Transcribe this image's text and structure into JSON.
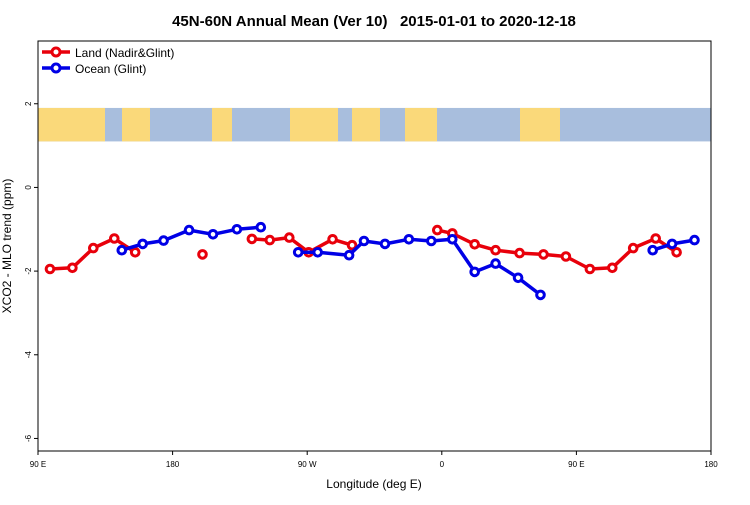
{
  "chart_data": {
    "type": "line",
    "title": "45N-60N Annual Mean (Ver 10)   2015-01-01 to 2020-12-18",
    "xlabel": "Longitude (deg E)",
    "ylabel": "XCO2 - MLO trend (ppm)",
    "xlim": [
      90,
      540
    ],
    "ylim": [
      -6.3,
      3.5
    ],
    "x_ticks": [
      {
        "value": 90,
        "label": "90 E"
      },
      {
        "value": 180,
        "label": "180"
      },
      {
        "value": 270,
        "label": "90 W"
      },
      {
        "value": 360,
        "label": "0"
      },
      {
        "value": 450,
        "label": "90 E"
      },
      {
        "value": 540,
        "label": "180"
      }
    ],
    "y_ticks": [
      {
        "value": 2,
        "label": "2"
      },
      {
        "value": 0,
        "label": "0"
      },
      {
        "value": -2,
        "label": "-2"
      },
      {
        "value": -4,
        "label": "-4"
      },
      {
        "value": -6,
        "label": "-6"
      }
    ],
    "map_band": {
      "y_top": 1.9,
      "y_bottom": 1.1,
      "ocean_color": "#a8bedd",
      "land_color": "#fad97a"
    },
    "grid": false,
    "legend_position": "top-left",
    "series": [
      {
        "name": "Land (Nadir&Glint)",
        "color": "#e8000b",
        "segments": [
          [
            [
              98,
              -1.95
            ],
            [
              113,
              -1.92
            ],
            [
              127,
              -1.45
            ],
            [
              141,
              -1.22
            ],
            [
              155,
              -1.55
            ]
          ],
          [
            [
              200,
              -1.6
            ]
          ],
          [
            [
              233,
              -1.23
            ],
            [
              245,
              -1.26
            ],
            [
              258,
              -1.2
            ],
            [
              271,
              -1.55
            ],
            [
              287,
              -1.24
            ],
            [
              300,
              -1.38
            ]
          ],
          [
            [
              357,
              -1.02
            ],
            [
              367,
              -1.1
            ],
            [
              382,
              -1.36
            ],
            [
              396,
              -1.5
            ],
            [
              412,
              -1.57
            ],
            [
              428,
              -1.6
            ],
            [
              443,
              -1.65
            ],
            [
              459,
              -1.95
            ],
            [
              474,
              -1.92
            ],
            [
              488,
              -1.45
            ],
            [
              503,
              -1.22
            ],
            [
              517,
              -1.55
            ]
          ]
        ]
      },
      {
        "name": "Ocean (Glint)",
        "color": "#0000e6",
        "segments": [
          [
            [
              146,
              -1.5
            ],
            [
              160,
              -1.35
            ],
            [
              174,
              -1.27
            ],
            [
              191,
              -1.02
            ],
            [
              207,
              -1.12
            ],
            [
              223,
              -1.0
            ],
            [
              239,
              -0.95
            ]
          ],
          [
            [
              264,
              -1.55
            ],
            [
              277,
              -1.55
            ],
            [
              298,
              -1.62
            ],
            [
              308,
              -1.28
            ],
            [
              322,
              -1.35
            ],
            [
              338,
              -1.24
            ],
            [
              353,
              -1.28
            ],
            [
              367,
              -1.24
            ],
            [
              382,
              -2.02
            ],
            [
              396,
              -1.82
            ],
            [
              411,
              -2.16
            ],
            [
              426,
              -2.57
            ]
          ],
          [
            [
              501,
              -1.5
            ],
            [
              514,
              -1.35
            ],
            [
              529,
              -1.26
            ]
          ]
        ]
      }
    ]
  }
}
